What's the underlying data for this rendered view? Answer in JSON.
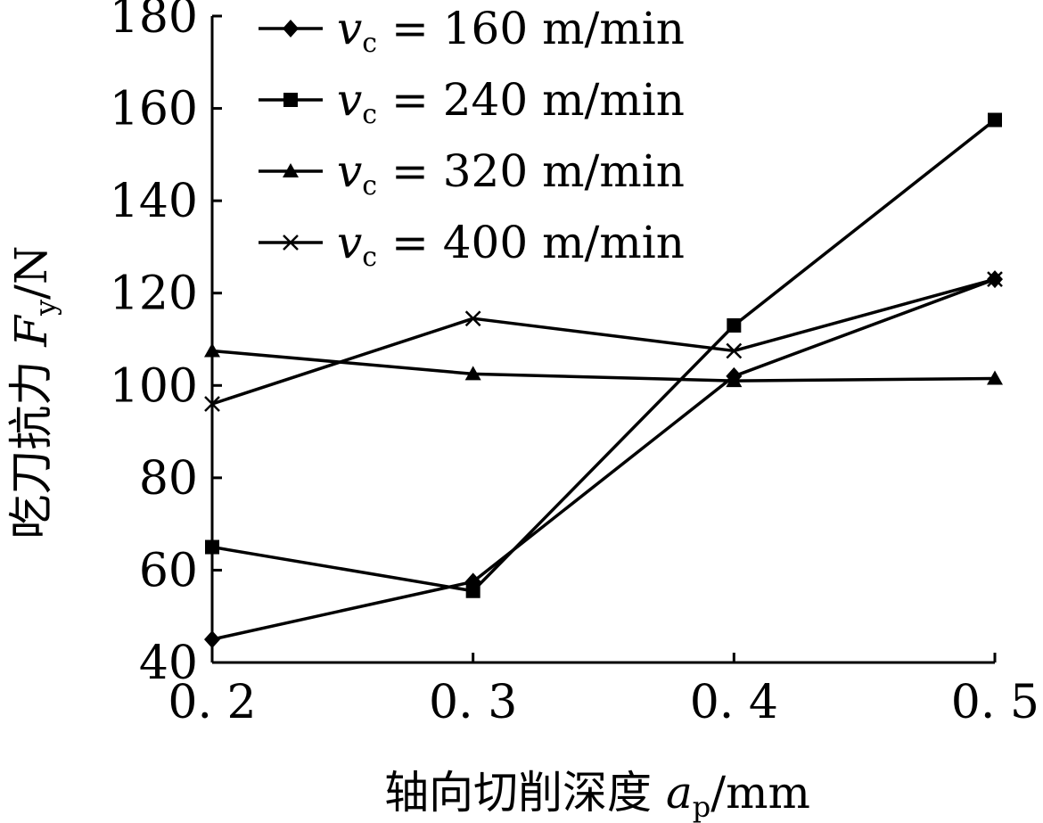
{
  "chart_data": {
    "type": "line",
    "xlabel": {
      "prefix": "轴向切削深度 ",
      "symbol": "a",
      "sub": "p",
      "unit": "/mm"
    },
    "ylabel": {
      "prefix": "吃刀抗力 ",
      "symbol": "F",
      "sub": "y",
      "unit": "/N"
    },
    "x": [
      0.2,
      0.3,
      0.4,
      0.5
    ],
    "x_tick_labels": [
      "0. 2",
      "0. 3",
      "0. 4",
      "0. 5"
    ],
    "xlim": [
      0.2,
      0.5
    ],
    "ylim": [
      40,
      180
    ],
    "y_ticks": [
      40,
      60,
      80,
      100,
      120,
      140,
      160,
      180
    ],
    "y_tick_labels": [
      "40",
      "60",
      "80",
      "100",
      "120",
      "140",
      "160",
      "180"
    ],
    "grid": false,
    "legend_position": "top-left",
    "series": [
      {
        "name": "v c = 160 m/min",
        "symbol": "v",
        "sub": "c",
        "rest": " = 160 m/min",
        "marker": "diamond",
        "values": [
          45,
          57.5,
          102,
          123
        ]
      },
      {
        "name": "v c = 240 m/min",
        "symbol": "v",
        "sub": "c",
        "rest": " = 240 m/min",
        "marker": "square",
        "values": [
          65,
          55.5,
          113,
          157.5
        ]
      },
      {
        "name": "v c = 320 m/min",
        "symbol": "v",
        "sub": "c",
        "rest": " = 320 m/min",
        "marker": "triangle",
        "values": [
          107.5,
          102.5,
          101,
          101.5
        ]
      },
      {
        "name": "v c = 400 m/min",
        "symbol": "v",
        "sub": "c",
        "rest": " = 400 m/min",
        "marker": "x",
        "values": [
          96,
          114.5,
          107.5,
          123
        ]
      }
    ],
    "colors": {
      "line": "#000000",
      "background": "#ffffff"
    }
  }
}
